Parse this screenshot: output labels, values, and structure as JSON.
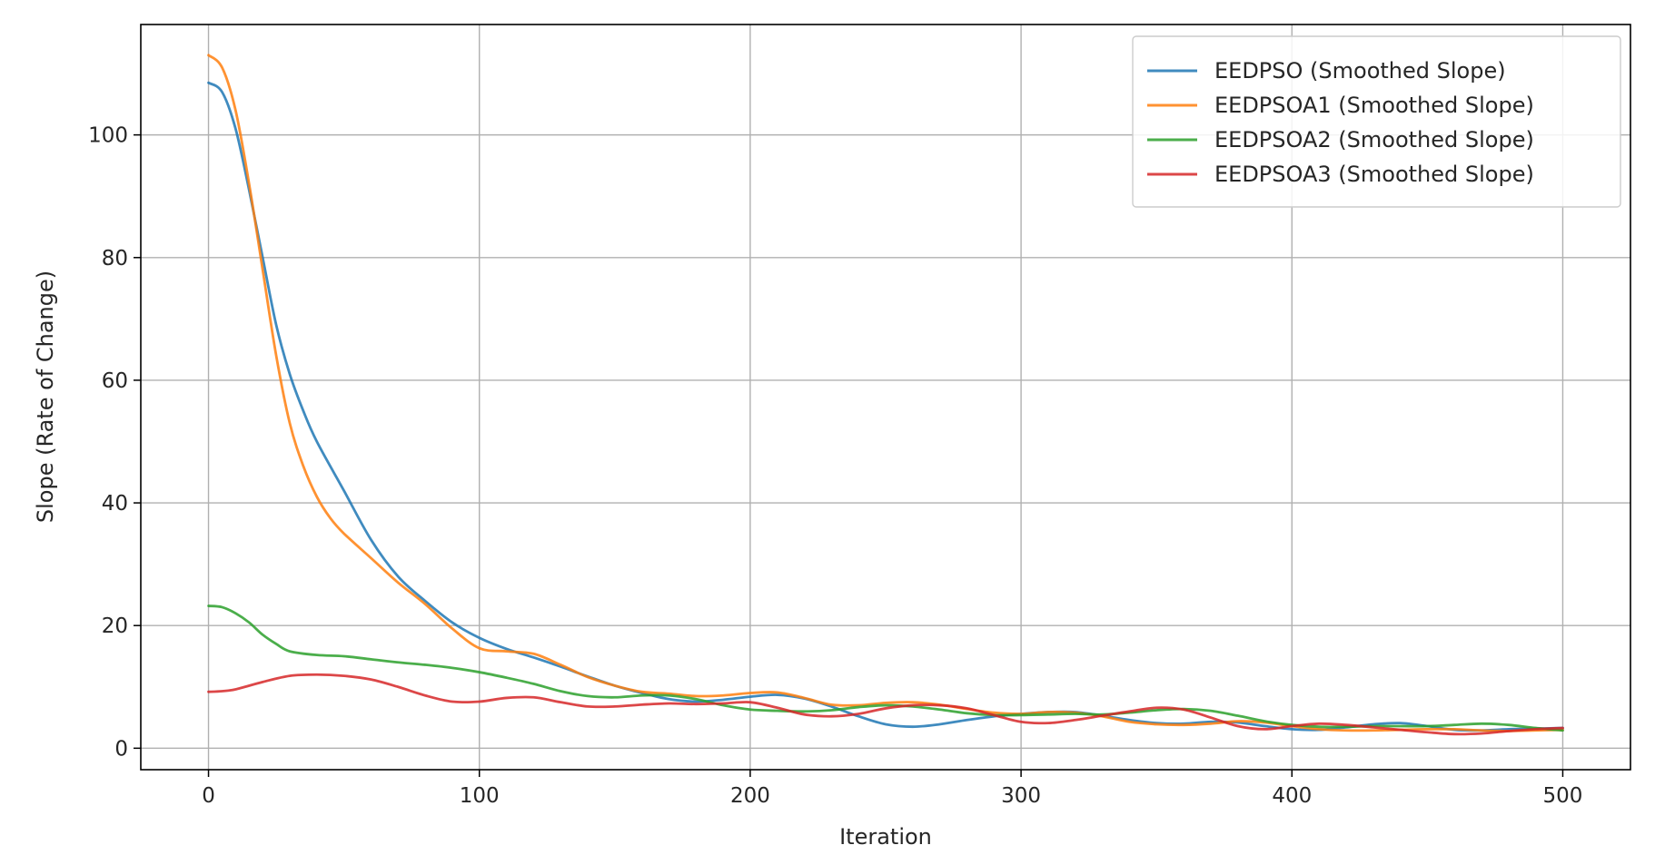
{
  "chart_data": {
    "type": "line",
    "title": "",
    "xlabel": "Iteration",
    "ylabel": "Slope (Rate of Change)",
    "xlim": [
      -25,
      525
    ],
    "ylim": [
      -3.5,
      118
    ],
    "xticks": [
      0,
      100,
      200,
      300,
      400,
      500
    ],
    "yticks": [
      0,
      20,
      40,
      60,
      80,
      100
    ],
    "grid": true,
    "legend_position": "top-right",
    "series": [
      {
        "name": "EEDPSO (Smoothed Slope)",
        "color": "#1f77b4",
        "x": [
          0,
          5,
          10,
          15,
          20,
          25,
          30,
          35,
          40,
          50,
          60,
          70,
          80,
          90,
          100,
          110,
          120,
          130,
          140,
          150,
          160,
          170,
          180,
          190,
          200,
          210,
          220,
          230,
          240,
          250,
          260,
          270,
          280,
          290,
          300,
          310,
          320,
          330,
          340,
          350,
          360,
          370,
          380,
          390,
          400,
          410,
          420,
          430,
          440,
          450,
          460,
          470,
          480,
          490,
          500
        ],
        "values": [
          108.5,
          107,
          101,
          91,
          80,
          69,
          61,
          55,
          50,
          42,
          34,
          28,
          24,
          20.5,
          18,
          16.2,
          14.8,
          13.3,
          11.7,
          10.2,
          9.0,
          8.0,
          7.6,
          7.9,
          8.4,
          8.7,
          8.1,
          6.8,
          5.2,
          3.9,
          3.5,
          3.9,
          4.6,
          5.2,
          5.6,
          5.9,
          5.9,
          5.3,
          4.6,
          4.1,
          4.0,
          4.3,
          4.2,
          3.6,
          3.1,
          3.0,
          3.4,
          3.9,
          4.1,
          3.6,
          3.0,
          2.9,
          3.1,
          3.2,
          3.3
        ]
      },
      {
        "name": "EEDPSOA1 (Smoothed Slope)",
        "color": "#ff7f0e",
        "x": [
          0,
          5,
          10,
          15,
          20,
          25,
          30,
          35,
          40,
          45,
          50,
          60,
          70,
          80,
          90,
          100,
          110,
          120,
          130,
          140,
          150,
          160,
          170,
          180,
          190,
          200,
          210,
          220,
          230,
          240,
          250,
          260,
          270,
          280,
          290,
          300,
          310,
          320,
          330,
          340,
          350,
          360,
          370,
          380,
          390,
          400,
          410,
          420,
          430,
          440,
          450,
          460,
          470,
          480,
          490,
          500
        ],
        "values": [
          113,
          111,
          104,
          92,
          78,
          64,
          53,
          46,
          41,
          37.5,
          35,
          31,
          27,
          23.5,
          19.5,
          16.3,
          15.8,
          15.4,
          13.6,
          11.6,
          10.2,
          9.2,
          8.9,
          8.5,
          8.6,
          9.0,
          9.1,
          8.2,
          7.1,
          7.0,
          7.4,
          7.5,
          7.1,
          6.4,
          5.8,
          5.6,
          5.9,
          5.8,
          5.2,
          4.3,
          3.9,
          3.8,
          4.0,
          4.4,
          4.2,
          3.6,
          3.1,
          2.9,
          2.9,
          3.0,
          3.1,
          3.1,
          2.9,
          2.8,
          2.9,
          3.0
        ]
      },
      {
        "name": "EEDPSOA2 (Smoothed Slope)",
        "color": "#2ca02c",
        "x": [
          0,
          5,
          10,
          15,
          20,
          25,
          30,
          40,
          50,
          60,
          70,
          80,
          90,
          100,
          110,
          120,
          130,
          140,
          150,
          160,
          170,
          180,
          190,
          200,
          210,
          220,
          230,
          240,
          250,
          260,
          270,
          280,
          290,
          300,
          310,
          320,
          330,
          340,
          350,
          360,
          370,
          380,
          390,
          400,
          410,
          420,
          430,
          440,
          450,
          460,
          470,
          480,
          490,
          500
        ],
        "values": [
          23.2,
          23,
          22,
          20.5,
          18.5,
          17,
          15.8,
          15.2,
          15.0,
          14.5,
          14.0,
          13.6,
          13.1,
          12.4,
          11.5,
          10.5,
          9.3,
          8.5,
          8.3,
          8.6,
          8.6,
          8.0,
          7.0,
          6.3,
          6.1,
          6.0,
          6.2,
          6.7,
          7.0,
          6.8,
          6.3,
          5.7,
          5.4,
          5.4,
          5.5,
          5.6,
          5.5,
          5.8,
          6.2,
          6.4,
          6.1,
          5.3,
          4.4,
          3.8,
          3.5,
          3.5,
          3.6,
          3.6,
          3.6,
          3.8,
          4.0,
          3.8,
          3.3,
          2.9
        ]
      },
      {
        "name": "EEDPSOA3 (Smoothed Slope)",
        "color": "#d62728",
        "x": [
          0,
          5,
          10,
          20,
          30,
          40,
          50,
          60,
          70,
          80,
          90,
          100,
          110,
          120,
          130,
          140,
          150,
          160,
          170,
          180,
          190,
          200,
          210,
          220,
          230,
          240,
          250,
          260,
          270,
          280,
          290,
          300,
          310,
          320,
          330,
          340,
          350,
          360,
          370,
          380,
          390,
          400,
          410,
          420,
          430,
          440,
          450,
          460,
          470,
          480,
          490,
          500
        ],
        "values": [
          9.2,
          9.3,
          9.6,
          10.8,
          11.8,
          12.0,
          11.8,
          11.2,
          10.0,
          8.6,
          7.6,
          7.6,
          8.2,
          8.3,
          7.5,
          6.8,
          6.8,
          7.1,
          7.3,
          7.2,
          7.3,
          7.5,
          6.6,
          5.5,
          5.2,
          5.6,
          6.5,
          7.0,
          7.0,
          6.5,
          5.4,
          4.3,
          4.1,
          4.6,
          5.3,
          6.0,
          6.6,
          6.3,
          5.0,
          3.6,
          3.1,
          3.6,
          4.0,
          3.8,
          3.4,
          3.0,
          2.6,
          2.3,
          2.4,
          2.8,
          3.1,
          3.3
        ]
      }
    ]
  }
}
